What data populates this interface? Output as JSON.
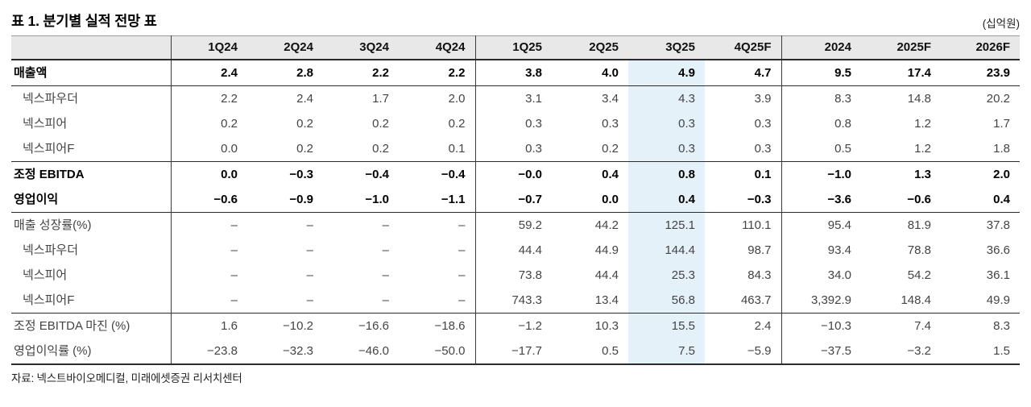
{
  "title": "표 1. 분기별 실적 전망 표",
  "unit_label": "(십억원)",
  "source": "자료: 넥스트바이오메디컬, 미래에셋증권 리서치센터",
  "highlight_color": "#e5f1f9",
  "header_bg_color": "#e8e8e8",
  "chart_data": {
    "type": "table",
    "title": "표 1. 분기별 실적 전망 표",
    "unit": "십억원",
    "highlighted_column": "3Q25",
    "columns": [
      "1Q24",
      "2Q24",
      "3Q24",
      "4Q24",
      "1Q25",
      "2Q25",
      "3Q25",
      "4Q25F",
      "2024",
      "2025F",
      "2026F"
    ],
    "rows": [
      {
        "label": "매출액",
        "style": "emph",
        "sect": true,
        "values": [
          "2.4",
          "2.8",
          "2.2",
          "2.2",
          "3.8",
          "4.0",
          "4.9",
          "4.7",
          "9.5",
          "17.4",
          "23.9"
        ]
      },
      {
        "label": "넥스파우더",
        "style": "sub",
        "sect": true,
        "values": [
          "2.2",
          "2.4",
          "1.7",
          "2.0",
          "3.1",
          "3.4",
          "4.3",
          "3.9",
          "8.3",
          "14.8",
          "20.2"
        ]
      },
      {
        "label": "넥스피어",
        "style": "sub",
        "sect": false,
        "values": [
          "0.2",
          "0.2",
          "0.2",
          "0.2",
          "0.3",
          "0.3",
          "0.3",
          "0.3",
          "0.8",
          "1.2",
          "1.7"
        ]
      },
      {
        "label": "넥스피어F",
        "style": "sub",
        "sect": false,
        "values": [
          "0.0",
          "0.2",
          "0.2",
          "0.1",
          "0.3",
          "0.2",
          "0.3",
          "0.3",
          "0.5",
          "1.2",
          "1.8"
        ]
      },
      {
        "label": "조정 EBITDA",
        "style": "emph",
        "sect": true,
        "values": [
          "0.0",
          "−0.3",
          "−0.4",
          "−0.4",
          "−0.0",
          "0.4",
          "0.8",
          "0.1",
          "−1.0",
          "1.3",
          "2.0"
        ]
      },
      {
        "label": "영업이익",
        "style": "emph",
        "sect": false,
        "values": [
          "−0.6",
          "−0.9",
          "−1.0",
          "−1.1",
          "−0.7",
          "0.0",
          "0.4",
          "−0.3",
          "−3.6",
          "−0.6",
          "0.4"
        ]
      },
      {
        "label": "매출 성장률(%)",
        "style": "plain",
        "sect": true,
        "values": [
          "–",
          "–",
          "–",
          "–",
          "59.2",
          "44.2",
          "125.1",
          "110.1",
          "95.4",
          "81.9",
          "37.8"
        ]
      },
      {
        "label": "넥스파우더",
        "style": "sub",
        "sect": false,
        "values": [
          "–",
          "–",
          "–",
          "–",
          "44.4",
          "44.9",
          "144.4",
          "98.7",
          "93.4",
          "78.8",
          "36.6"
        ]
      },
      {
        "label": "넥스피어",
        "style": "sub",
        "sect": false,
        "values": [
          "–",
          "–",
          "–",
          "–",
          "73.8",
          "44.4",
          "25.3",
          "84.3",
          "34.0",
          "54.2",
          "36.1"
        ]
      },
      {
        "label": "넥스피어F",
        "style": "sub",
        "sect": false,
        "values": [
          "–",
          "–",
          "–",
          "–",
          "743.3",
          "13.4",
          "56.8",
          "463.7",
          "3,392.9",
          "148.4",
          "49.9"
        ]
      },
      {
        "label": "조정 EBITDA 마진 (%)",
        "style": "plain",
        "sect": true,
        "values": [
          "1.6",
          "−10.2",
          "−16.6",
          "−18.6",
          "−1.2",
          "10.3",
          "15.5",
          "2.4",
          "−10.3",
          "7.4",
          "8.3"
        ]
      },
      {
        "label": "영업이익률 (%)",
        "style": "plain",
        "sect": false,
        "values": [
          "−23.8",
          "−32.3",
          "−46.0",
          "−50.0",
          "−17.7",
          "0.5",
          "7.5",
          "−5.9",
          "−37.5",
          "−3.2",
          "1.5"
        ]
      }
    ]
  }
}
